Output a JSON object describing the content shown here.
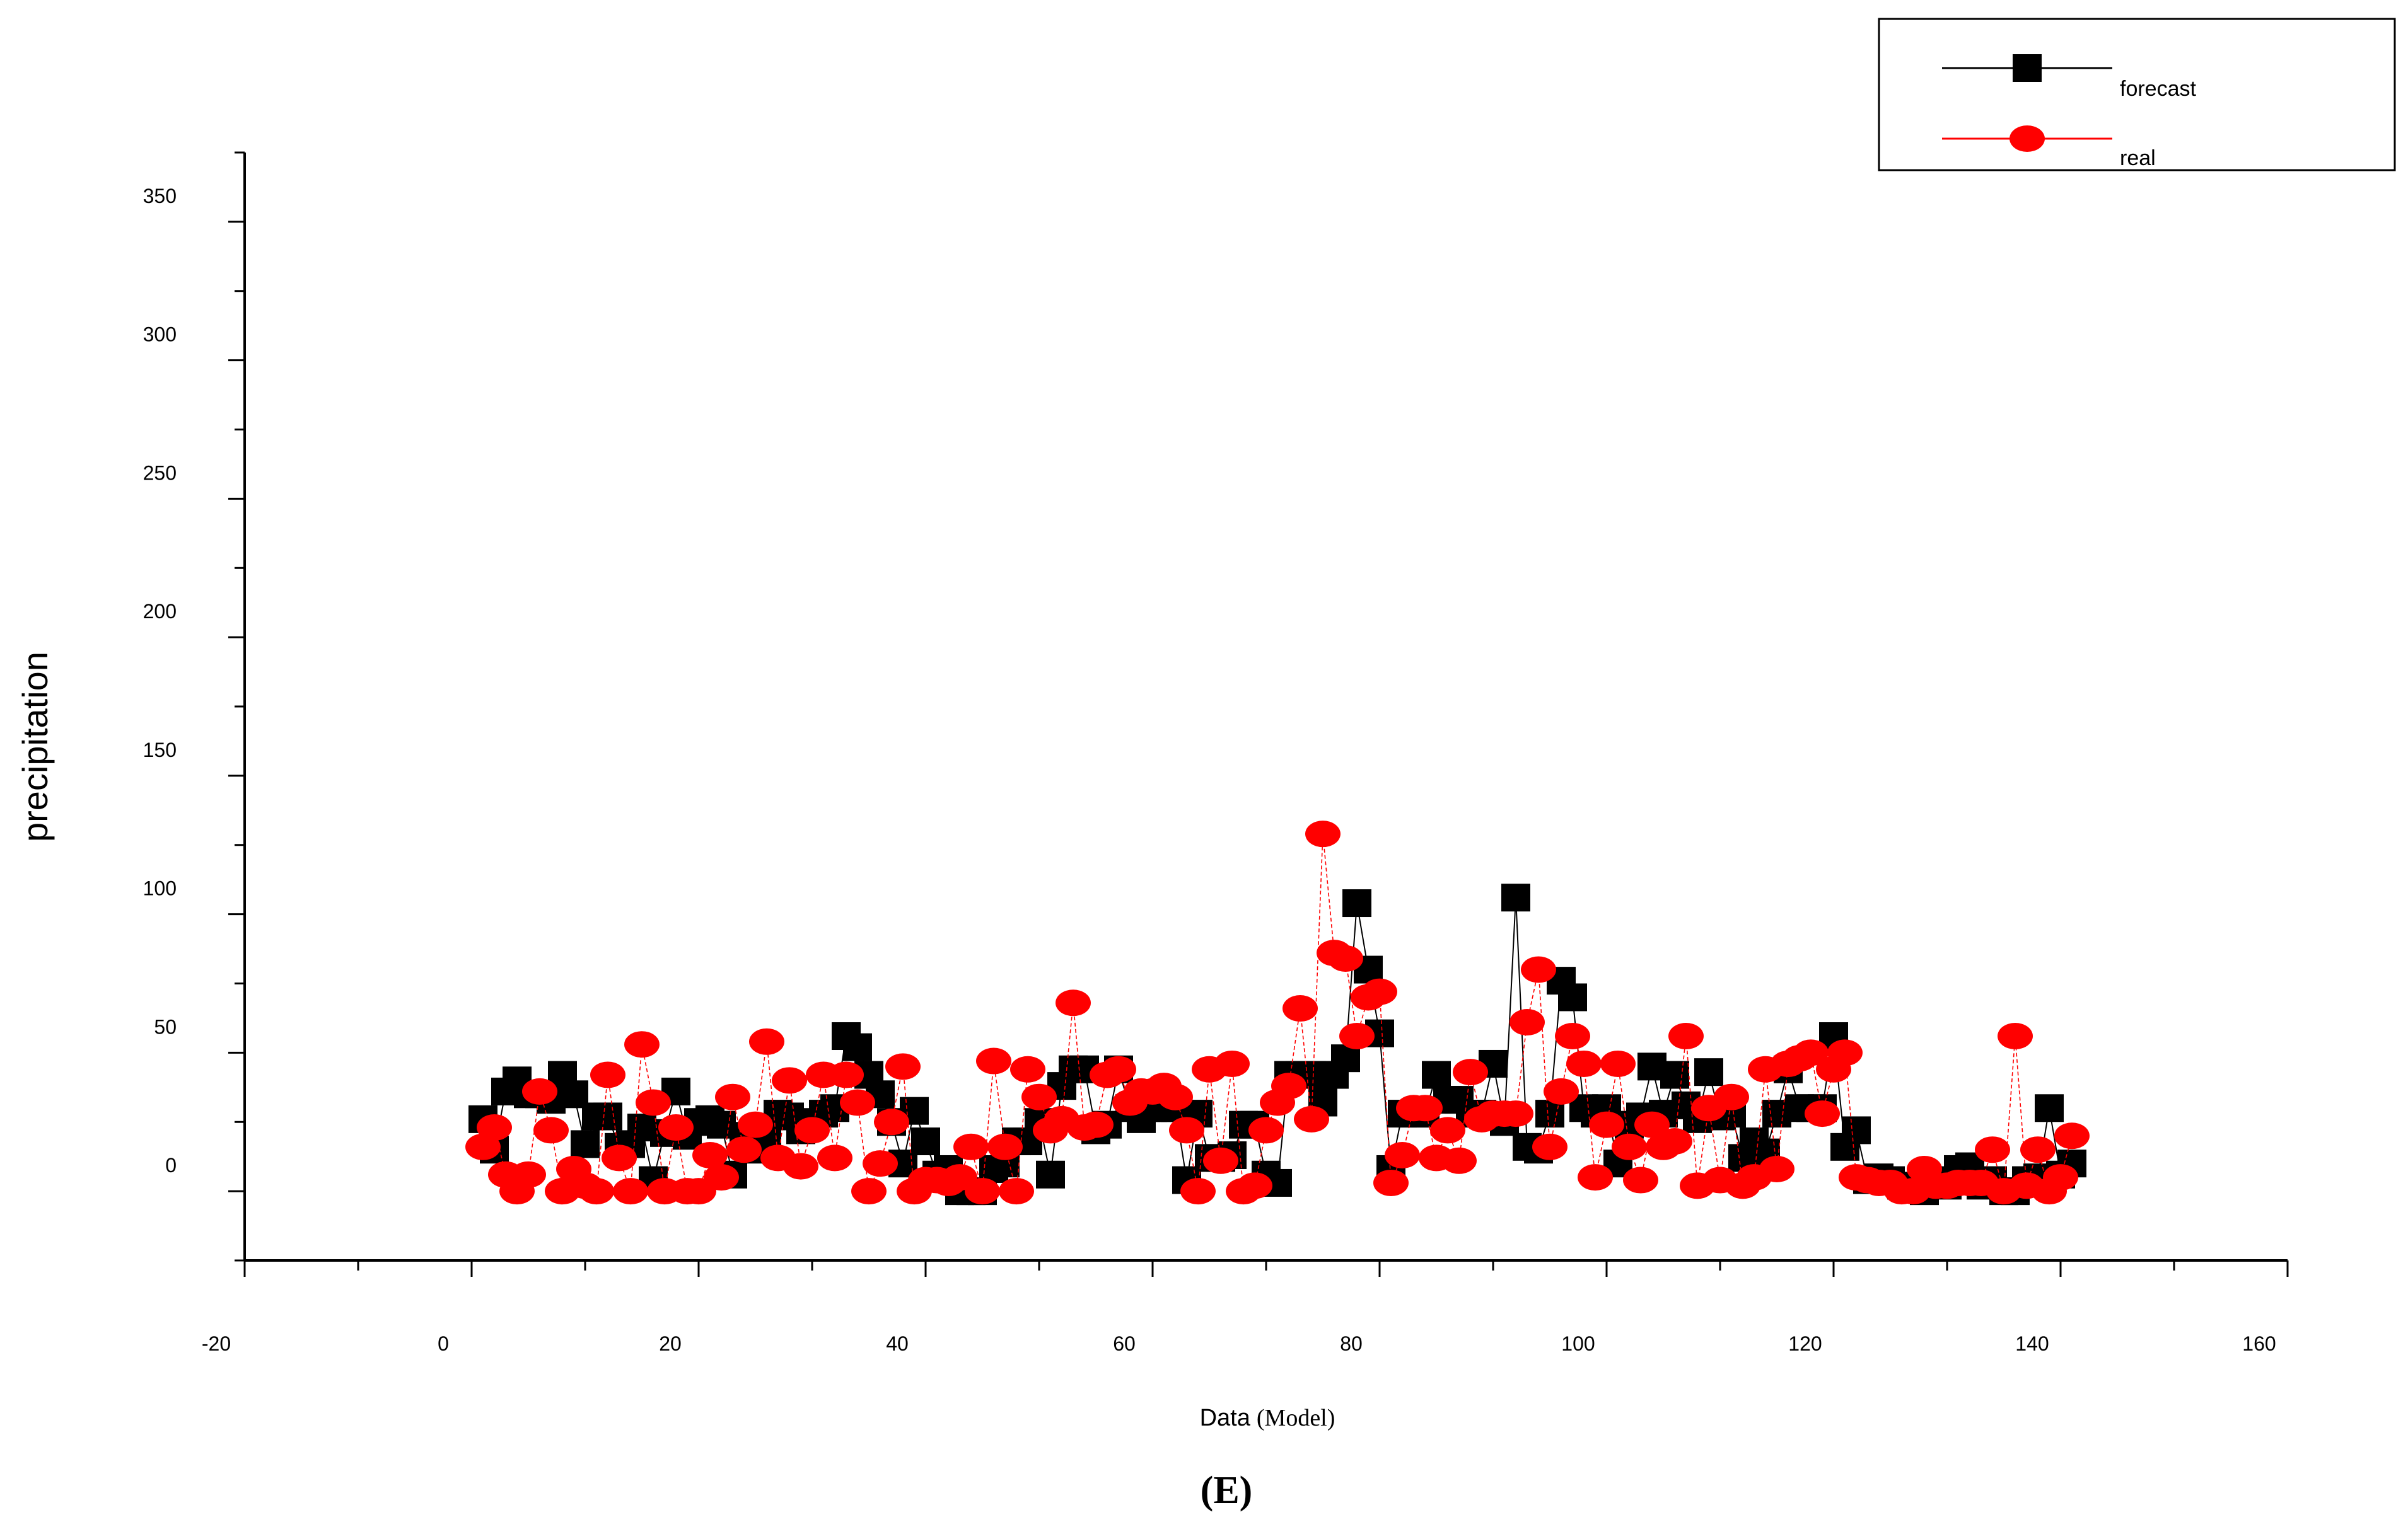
{
  "chart_data": {
    "type": "scatter",
    "xlabel": "Data",
    "xlabel_suffix": "(Model)",
    "ylabel": "precipitation",
    "caption": "(E)",
    "xlim": [
      -20,
      160
    ],
    "ylim": [
      -25,
      375
    ],
    "x_ticks": [
      -20,
      0,
      20,
      40,
      60,
      80,
      100,
      120,
      140,
      160
    ],
    "y_ticks": [
      0,
      50,
      100,
      150,
      200,
      250,
      300,
      350
    ],
    "grid": false,
    "legend_position": "top-right",
    "series": [
      {
        "name": "forecast",
        "color": "#000000",
        "marker": "square",
        "x": [
          1,
          2,
          3,
          4,
          5,
          6,
          7,
          8,
          9,
          10,
          11,
          12,
          13,
          14,
          15,
          16,
          17,
          18,
          19,
          20,
          21,
          22,
          23,
          24,
          25,
          26,
          27,
          28,
          29,
          30,
          31,
          32,
          33,
          34,
          35,
          36,
          37,
          38,
          39,
          40,
          41,
          42,
          43,
          44,
          45,
          46,
          47,
          48,
          49,
          50,
          51,
          52,
          53,
          54,
          55,
          56,
          57,
          58,
          59,
          60,
          61,
          62,
          63,
          64,
          65,
          66,
          67,
          68,
          69,
          70,
          71,
          72,
          73,
          74,
          75,
          76,
          77,
          78,
          79,
          80,
          81,
          82,
          83,
          84,
          85,
          86,
          87,
          88,
          89,
          90,
          91,
          92,
          93,
          94,
          95,
          96,
          97,
          98,
          99,
          100,
          101,
          102,
          103,
          104,
          105,
          106,
          107,
          108,
          109,
          110,
          111,
          112,
          113,
          114,
          115,
          116,
          117,
          118,
          119,
          120,
          121,
          122,
          123,
          124,
          125,
          126,
          127,
          128,
          129,
          130,
          131,
          132,
          133,
          134,
          135,
          136,
          137,
          138,
          139,
          140,
          141
        ],
        "values": [
          26,
          15,
          36,
          40,
          35,
          35,
          33,
          42,
          35,
          17,
          27,
          27,
          16,
          17,
          23,
          4,
          21,
          36,
          20,
          25,
          26,
          24,
          6,
          20,
          15,
          20,
          28,
          27,
          22,
          25,
          28,
          30,
          56,
          52,
          42,
          35,
          25,
          10,
          29,
          18,
          6,
          8,
          0,
          0,
          0,
          8,
          10,
          18,
          18,
          25,
          6,
          38,
          44,
          44,
          22,
          24,
          44,
          30,
          26,
          30,
          30,
          30,
          4,
          28,
          12,
          12,
          13,
          24,
          24,
          6,
          3,
          42,
          42,
          42,
          32,
          42,
          48,
          104,
          80,
          57,
          8,
          28,
          28,
          28,
          42,
          33,
          33,
          28,
          28,
          46,
          25,
          106,
          16,
          15,
          28,
          76,
          70,
          30,
          28,
          30,
          10,
          24,
          27,
          45,
          28,
          42,
          31,
          26,
          43,
          27,
          28,
          12,
          18,
          14,
          28,
          44,
          30,
          30,
          30,
          56,
          16,
          22,
          4,
          5,
          4,
          2,
          1,
          0,
          4,
          2,
          8,
          9,
          2,
          4,
          0,
          0,
          4,
          5,
          30,
          6,
          10
        ]
      },
      {
        "name": "real",
        "color": "#ff0000",
        "marker": "circle",
        "x": [
          1,
          2,
          3,
          4,
          5,
          6,
          7,
          8,
          9,
          10,
          11,
          12,
          13,
          14,
          15,
          16,
          17,
          18,
          19,
          20,
          21,
          22,
          23,
          24,
          25,
          26,
          27,
          28,
          29,
          30,
          31,
          32,
          33,
          34,
          35,
          36,
          37,
          38,
          39,
          40,
          41,
          42,
          43,
          44,
          45,
          46,
          47,
          48,
          49,
          50,
          51,
          52,
          53,
          54,
          55,
          56,
          57,
          58,
          59,
          60,
          61,
          62,
          63,
          64,
          65,
          66,
          67,
          68,
          69,
          70,
          71,
          72,
          73,
          74,
          75,
          76,
          77,
          78,
          79,
          80,
          81,
          82,
          83,
          84,
          85,
          86,
          87,
          88,
          89,
          90,
          91,
          92,
          93,
          94,
          95,
          96,
          97,
          98,
          99,
          100,
          101,
          102,
          103,
          104,
          105,
          106,
          107,
          108,
          109,
          110,
          111,
          112,
          113,
          114,
          115,
          116,
          117,
          118,
          119,
          120,
          121,
          122,
          123,
          124,
          125,
          126,
          127,
          128,
          129,
          130,
          131,
          132,
          133,
          134,
          135,
          136,
          137,
          138,
          139,
          140,
          141
        ],
        "values": [
          16,
          23,
          6,
          0,
          6,
          36,
          22,
          0,
          8,
          2,
          0,
          42,
          12,
          0,
          53,
          32,
          0,
          23,
          0,
          0,
          13,
          5,
          34,
          15,
          24,
          54,
          12,
          40,
          9,
          22,
          42,
          12,
          42,
          32,
          0,
          10,
          25,
          45,
          0,
          4,
          4,
          3,
          5,
          16,
          0,
          47,
          16,
          0,
          44,
          34,
          22,
          26,
          68,
          23,
          24,
          42,
          44,
          32,
          36,
          36,
          38,
          34,
          22,
          0,
          44,
          11,
          46,
          0,
          2,
          22,
          32,
          38,
          66,
          26,
          129,
          86,
          84,
          56,
          70,
          72,
          3,
          13,
          30,
          30,
          12,
          22,
          11,
          43,
          26,
          28,
          28,
          28,
          61,
          80,
          16,
          36,
          56,
          46,
          5,
          24,
          46,
          16,
          4,
          24,
          16,
          18,
          56,
          2,
          30,
          4,
          34,
          2,
          5,
          44,
          8,
          46,
          48,
          50,
          28,
          44,
          50,
          5,
          4,
          3,
          3,
          0,
          0,
          8,
          2,
          2,
          3,
          3,
          3,
          15,
          0,
          56,
          2,
          15,
          0,
          5,
          20
        ]
      }
    ]
  }
}
